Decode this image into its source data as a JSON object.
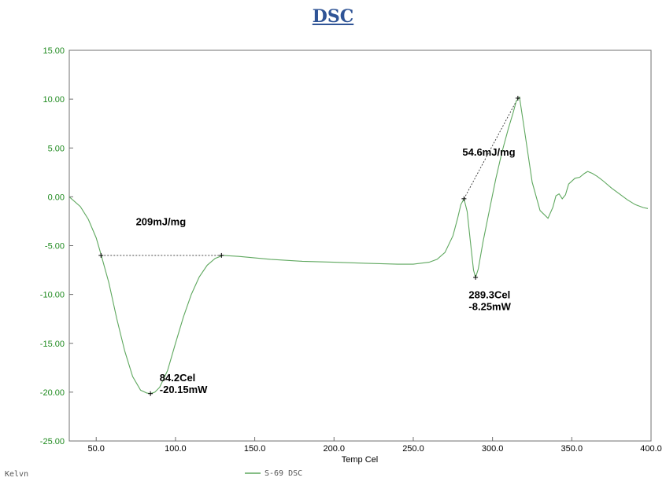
{
  "title": "DSC",
  "footer": "Kelvn",
  "chart_data": {
    "type": "line",
    "title": "DSC",
    "xlabel": "Temp Cel",
    "ylabel": "",
    "xlim": [
      33,
      400
    ],
    "ylim": [
      -25,
      15
    ],
    "x_ticks": [
      50,
      100,
      150,
      200,
      250,
      300,
      350,
      400
    ],
    "x_tick_labels": [
      "50.0",
      "100.0",
      "150.0",
      "200.0",
      "250.0",
      "300.0",
      "350.0",
      "400.0"
    ],
    "y_ticks": [
      15,
      10,
      5,
      0,
      -5,
      -10,
      -15,
      -20,
      -25
    ],
    "y_tick_labels": [
      "15.00",
      "10.00",
      "5.00",
      "0.00",
      "-5.00",
      "-10.00",
      "-15.00",
      "-20.00",
      "-25.00"
    ],
    "series": [
      {
        "name": "S-69  DSC",
        "color": "#5fa85f",
        "x": [
          33,
          40,
          45,
          50,
          53,
          58,
          63,
          68,
          73,
          78,
          82,
          84.2,
          87,
          90,
          95,
          100,
          105,
          110,
          115,
          120,
          125,
          130,
          140,
          160,
          180,
          200,
          220,
          240,
          250,
          260,
          265,
          270,
          275,
          278,
          280,
          282,
          284,
          286,
          288,
          289.3,
          291,
          294,
          298,
          302,
          306,
          310,
          313,
          315,
          317,
          320,
          325,
          330,
          335,
          338,
          340,
          342,
          344,
          346,
          348,
          352,
          355,
          358,
          360,
          363,
          366,
          370,
          375,
          380,
          385,
          390,
          395,
          398
        ],
        "y": [
          0.0,
          -1.0,
          -2.3,
          -4.2,
          -5.9,
          -8.8,
          -12.5,
          -15.8,
          -18.4,
          -19.8,
          -20.1,
          -20.15,
          -20.0,
          -19.5,
          -17.8,
          -15.0,
          -12.3,
          -10.0,
          -8.2,
          -7.0,
          -6.3,
          -6.0,
          -6.1,
          -6.4,
          -6.6,
          -6.7,
          -6.8,
          -6.9,
          -6.9,
          -6.7,
          -6.4,
          -5.7,
          -4.0,
          -2.2,
          -0.8,
          -0.2,
          -1.5,
          -4.5,
          -7.5,
          -8.25,
          -7.4,
          -4.6,
          -1.4,
          1.8,
          4.6,
          7.0,
          8.6,
          9.8,
          10.2,
          7.0,
          1.5,
          -1.4,
          -2.2,
          -1.1,
          0.1,
          0.3,
          -0.2,
          0.2,
          1.3,
          1.9,
          2.0,
          2.4,
          2.6,
          2.4,
          2.1,
          1.6,
          0.9,
          0.3,
          -0.3,
          -0.8,
          -1.1,
          -1.2
        ]
      }
    ],
    "baselines": [
      {
        "x": [
          53,
          129
        ],
        "y": [
          -6.0,
          -6.0
        ]
      },
      {
        "x": [
          282,
          316
        ],
        "y": [
          -0.2,
          10.1
        ]
      }
    ],
    "markers": [
      {
        "x": 53,
        "y": -6.0
      },
      {
        "x": 129,
        "y": -6.0
      },
      {
        "x": 84.2,
        "y": -20.15
      },
      {
        "x": 282,
        "y": -0.2
      },
      {
        "x": 316,
        "y": 10.1
      },
      {
        "x": 289.3,
        "y": -8.25
      }
    ],
    "annotations": [
      {
        "lines": [
          "209mJ/mg"
        ],
        "x": 75,
        "y": -2.9
      },
      {
        "lines": [
          "84.2Cel",
          "-20.15mW"
        ],
        "x": 90,
        "y": -18.9
      },
      {
        "lines": [
          "54.6mJ/mg"
        ],
        "x": 281,
        "y": 4.2
      },
      {
        "lines": [
          "289.3Cel",
          "-8.25mW"
        ],
        "x": 285,
        "y": -10.4
      }
    ],
    "legend": {
      "position": "bottom-center",
      "label": "S-69  DSC"
    },
    "grid": false
  }
}
